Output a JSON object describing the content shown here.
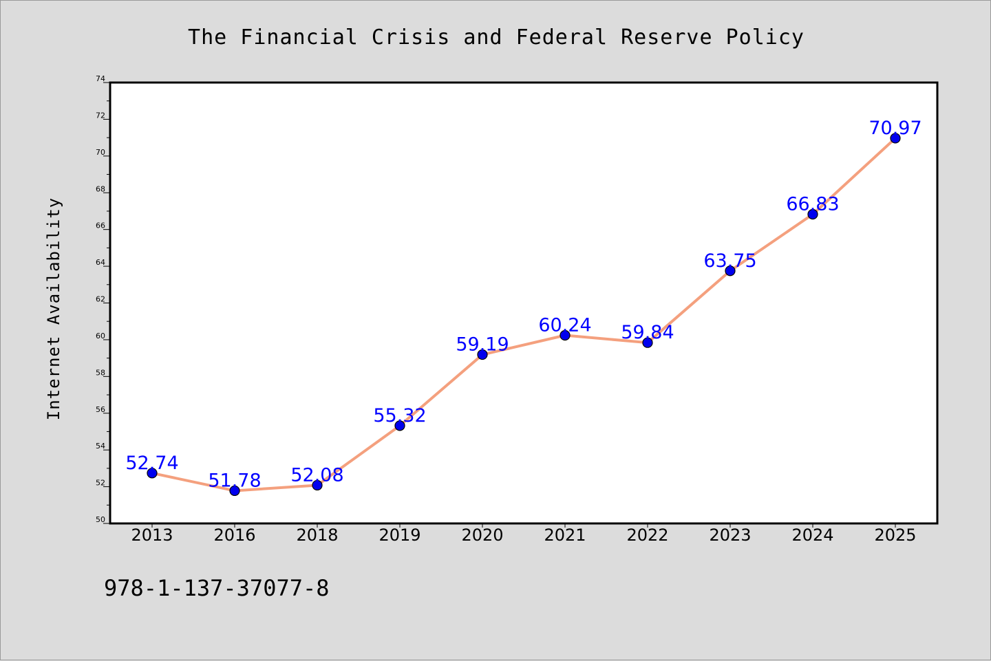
{
  "chart_data": {
    "type": "line",
    "title": "The Financial Crisis and Federal Reserve Policy",
    "xlabel": "",
    "ylabel": "Internet Availability",
    "categories": [
      "2013",
      "2016",
      "2018",
      "2019",
      "2020",
      "2021",
      "2022",
      "2023",
      "2024",
      "2025"
    ],
    "series": [
      {
        "values": [
          52.74,
          51.78,
          52.08,
          55.32,
          59.19,
          60.24,
          59.84,
          63.75,
          66.83,
          70.97
        ],
        "data_labels": [
          "52.74",
          "51.78",
          "52.08",
          "55.32",
          "59.19",
          "60.24",
          "59.84",
          "63.75",
          "66.83",
          "70.97"
        ]
      }
    ],
    "ylim": [
      50,
      74
    ],
    "yticks": [
      "50",
      "52",
      "54",
      "56",
      "58",
      "60",
      "62",
      "64",
      "66",
      "68",
      "70",
      "72",
      "74"
    ],
    "grid": false,
    "line_color": "#f4a07e",
    "marker_color": "#0000ee",
    "label_color": "#0000ff",
    "plot_background": "#ffffff",
    "figure_background": "#dcdcdc"
  },
  "annotation": "978-1-137-37077-8"
}
